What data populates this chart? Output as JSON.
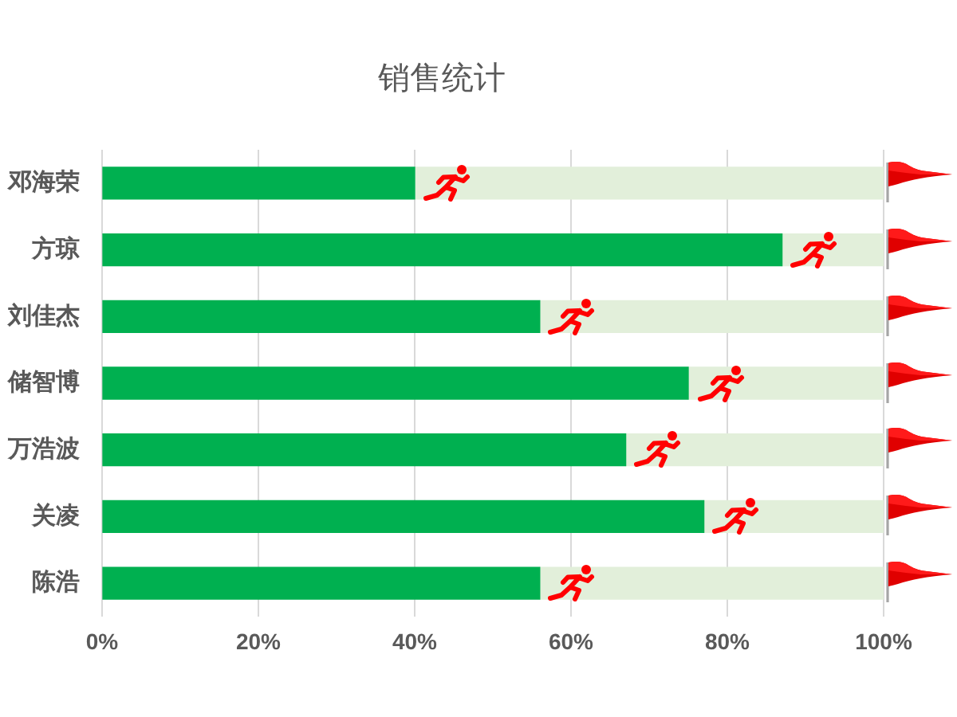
{
  "chart_data": {
    "type": "bar",
    "orientation": "horizontal",
    "stacked": true,
    "title": "销售统计",
    "categories": [
      "邓海荣",
      "方琼",
      "刘佳杰",
      "储智博",
      "万浩波",
      "关凌",
      "陈浩"
    ],
    "series": [
      {
        "color": "#00b050",
        "values": [
          40,
          87,
          56,
          75,
          67,
          77,
          56
        ]
      },
      {
        "color": "#e2efda",
        "values": [
          60,
          13,
          44,
          25,
          33,
          23,
          44
        ]
      }
    ],
    "xlim": [
      0,
      100
    ],
    "xticks": [
      {
        "value": 0,
        "label": "0%"
      },
      {
        "value": 20,
        "label": "20%"
      },
      {
        "value": 40,
        "label": "40%"
      },
      {
        "value": 60,
        "label": "60%"
      },
      {
        "value": 80,
        "label": "80%"
      },
      {
        "value": 100,
        "label": "100%"
      }
    ],
    "grid": "x",
    "legend": false
  }
}
